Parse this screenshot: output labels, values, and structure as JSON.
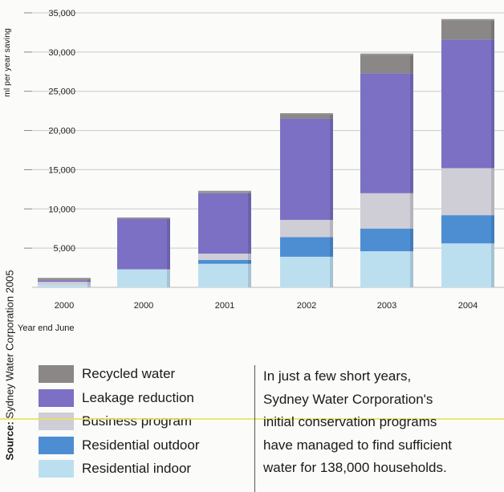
{
  "chart_data": {
    "type": "bar",
    "stacked": true,
    "categories": [
      "2000",
      "2000",
      "2001",
      "2002",
      "2003",
      "2004"
    ],
    "series": [
      {
        "name": "Residential indoor",
        "color": "#bcdff0",
        "values": [
          300,
          2300,
          3000,
          3900,
          4600,
          5600
        ]
      },
      {
        "name": "Residential outdoor",
        "color": "#4d8ed3",
        "values": [
          0,
          0,
          500,
          2500,
          2900,
          3600
        ]
      },
      {
        "name": "Business program",
        "color": "#cfcdd6",
        "values": [
          400,
          0,
          800,
          2200,
          4500,
          6000
        ]
      },
      {
        "name": "Leakage reduction",
        "color": "#7b70c4",
        "values": [
          200,
          6400,
          7700,
          12900,
          15300,
          16400
        ]
      },
      {
        "name": "Recycled water",
        "color": "#8a8786",
        "values": [
          100,
          0,
          100,
          500,
          2300,
          2400
        ]
      }
    ],
    "ylim": [
      0,
      35000
    ],
    "yticks": [
      "35,000",
      "30,000",
      "25,000",
      "20,000",
      "15,000",
      "10,000",
      "5,000"
    ],
    "ylabel": "ml per year saving",
    "xlabel": "Year end June",
    "grid": true
  },
  "legend": {
    "items": [
      {
        "label": "Recycled water",
        "color": "#8a8786"
      },
      {
        "label": "Leakage reduction",
        "color": "#7b70c4"
      },
      {
        "label": "Business program",
        "color": "#cfcdd6"
      },
      {
        "label": "Residential outdoor",
        "color": "#4d8ed3"
      },
      {
        "label": "Residential indoor",
        "color": "#bcdff0"
      }
    ]
  },
  "source": {
    "label": "Source:",
    "text": "Sydney Water Corporation 2005"
  },
  "paragraph": {
    "lines": [
      "In just a few short years,",
      "Sydney Water Corporation's",
      "initial conservation programs",
      "have managed to find sufficient",
      "water for 138,000 households."
    ]
  }
}
